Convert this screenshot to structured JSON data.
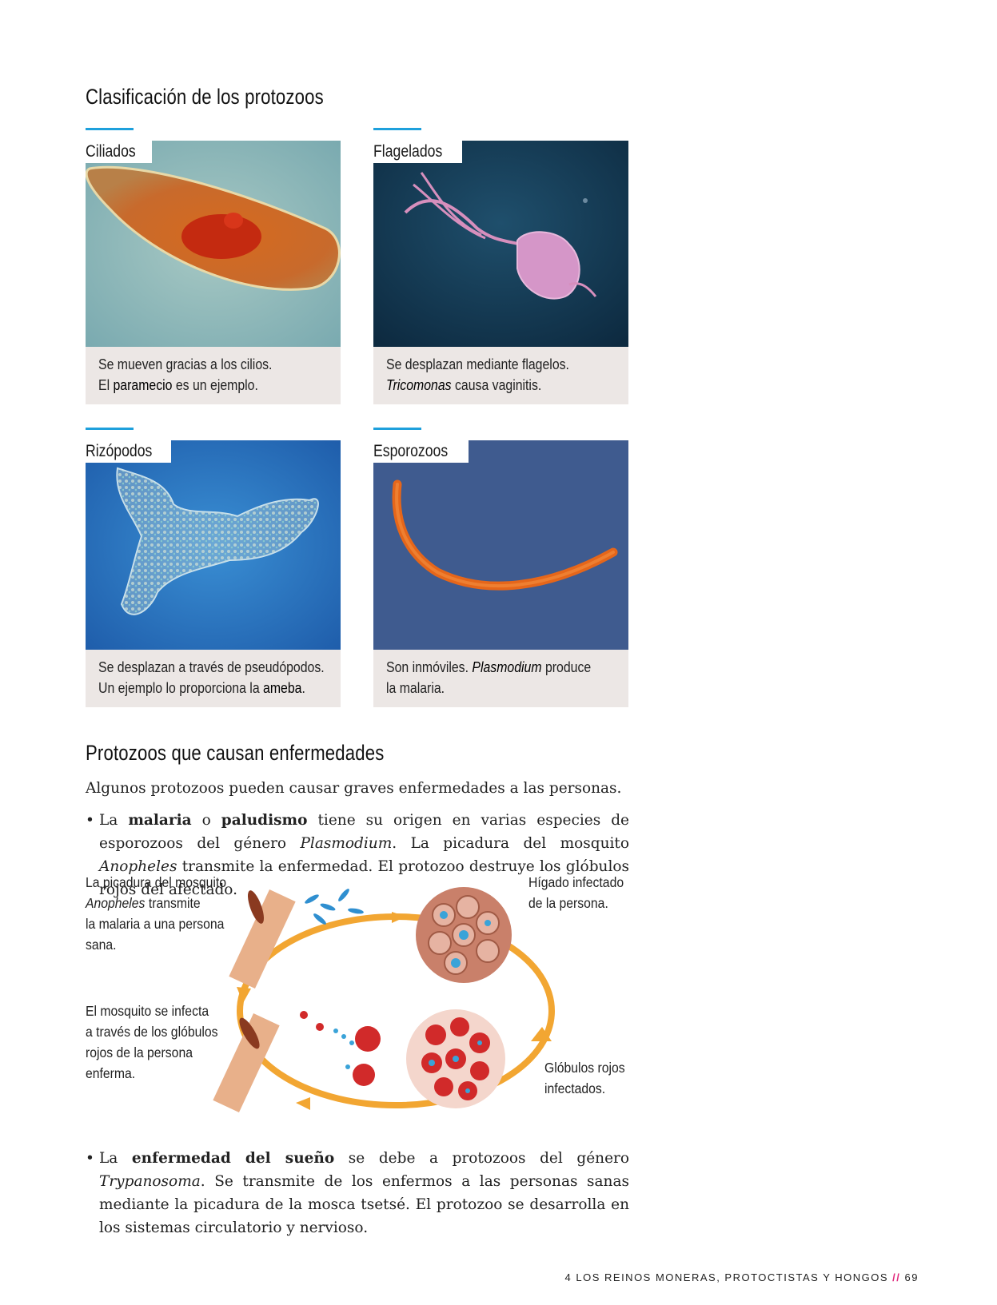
{
  "section1": {
    "title": "Clasificación de los protozoos"
  },
  "cards": [
    {
      "title": "Ciliados",
      "line1": "Se mueven gracias a los cilios.",
      "line2_pre": "El ",
      "line2_em": "paramecio",
      "line2_post": " es un ejemplo."
    },
    {
      "title": "Flagelados",
      "line1": "Se desplazan mediante flagelos.",
      "line2_pre": "",
      "line2_em": "Tricomonas",
      "line2_post": " causa vaginitis."
    },
    {
      "title": "Rizópodos",
      "line1": "Se desplazan a través de pseudópodos.",
      "line2_pre": "Un ejemplo lo proporciona la ",
      "line2_em": "ameba",
      "line2_post": "."
    },
    {
      "title": "Esporozoos",
      "line1_pre": "Son inmóviles. ",
      "line1_em": "Plasmodium",
      "line1_post": " produce",
      "line2": "la malaria."
    }
  ],
  "section2": {
    "title": "Protozoos que causan enfermedades",
    "intro": "Algunos protozoos pueden causar graves enfermedades a las personas.",
    "bullet1": {
      "a": "La ",
      "b": "malaria",
      "c": " o ",
      "d": "paludismo",
      "e": " tiene su origen en varias especies de esporozoos del género ",
      "f": "Plasmodium",
      "g": ". La picadura del mosquito ",
      "h": "Anopheles",
      "i": " transmite la enfermedad. El protozoo destruye los glóbulos rojos del afectado."
    },
    "bullet2": {
      "a": "La ",
      "b": "enfermedad del sueño",
      "c": " se debe a protozoos del género ",
      "d": "Trypanosoma",
      "e": ". Se transmite de los enfermos a las personas sanas mediante la picadura de la mosca tsetsé. El protozoo se desarrolla en los sistemas circulatorio y nervioso."
    }
  },
  "diagram": {
    "label_bite": {
      "l1": "La picadura del mosquito",
      "l2_em": "Anopheles",
      "l2_post": " transmite",
      "l3": "la malaria a una persona",
      "l4": "sana."
    },
    "label_liver": {
      "l1": "Hígado infectado",
      "l2": "de la persona."
    },
    "label_mosquito": {
      "l1": "El mosquito se infecta",
      "l2": "a través de los glóbulos",
      "l3": "rojos de la persona",
      "l4": "enferma."
    },
    "label_cells": {
      "l1": "Glóbulos rojos",
      "l2": "infectados."
    }
  },
  "footer": {
    "text": "4 LOS REINOS MONERAS, PROTOCTISTAS Y HONGOS",
    "sep": "//",
    "page": "69"
  },
  "colors": {
    "accent_blue": "#1ea0dc",
    "caption_bg": "#ece7e5",
    "cycle_orange": "#f2a632",
    "footer_pink": "#e0267a"
  }
}
